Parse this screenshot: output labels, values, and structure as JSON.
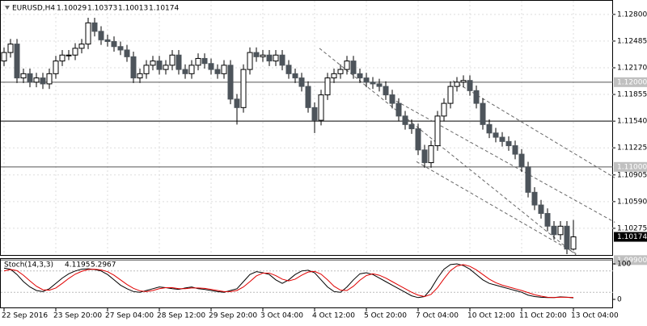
{
  "chart_data": {
    "type": "candlestick",
    "title": "EURUSD,H4",
    "categories": [
      "22 Sep 2016",
      null,
      null,
      null,
      null,
      null,
      null,
      null,
      "23 Sep 20:00",
      null,
      null,
      null,
      null,
      null,
      null,
      null,
      "27 Sep 04:00",
      null,
      null,
      null,
      null,
      null,
      null,
      null,
      "28 Sep 12:00",
      null,
      null,
      null,
      null,
      null,
      null,
      null,
      "29 Sep 20:00",
      null,
      null,
      null,
      null,
      null,
      null,
      null,
      "3 Oct 04:00",
      null,
      null,
      null,
      null,
      null,
      null,
      null,
      "4 Oct 12:00",
      null,
      null,
      null,
      null,
      null,
      null,
      null,
      "5 Oct 20:00",
      null,
      null,
      null,
      null,
      null,
      null,
      null,
      "7 Oct 04:00",
      null,
      null,
      null,
      null,
      null,
      null,
      null,
      "10 Oct 12:00",
      null,
      null,
      null,
      null,
      null,
      null,
      null,
      "11 Oct 20:00",
      null,
      null,
      null,
      null,
      null,
      null,
      null,
      "13 Oct 04:00"
    ],
    "open": [
      1.1225,
      1.1235,
      1.1245,
      1.1205,
      1.121,
      1.12,
      1.1205,
      1.1198,
      1.121,
      1.1225,
      1.1232,
      1.1232,
      1.124,
      1.1245,
      1.127,
      1.126,
      1.125,
      1.1248,
      1.1242,
      1.1238,
      1.123,
      1.1205,
      1.121,
      1.122,
      1.1225,
      1.1215,
      1.122,
      1.1232,
      1.1215,
      1.121,
      1.122,
      1.1228,
      1.1222,
      1.1215,
      1.121,
      1.122,
      1.118,
      1.117,
      1.1215,
      1.1235,
      1.123,
      1.1232,
      1.1225,
      1.1232,
      1.122,
      1.121,
      1.1205,
      1.1195,
      1.117,
      1.1155,
      1.1185,
      1.1205,
      1.121,
      1.1215,
      1.1225,
      1.121,
      1.1205,
      1.12,
      1.1198,
      1.1195,
      1.1185,
      1.1175,
      1.116,
      1.115,
      1.1145,
      1.112,
      1.1105,
      1.1125,
      1.116,
      1.1175,
      1.1195,
      1.12,
      1.1202,
      1.119,
      1.1175,
      1.115,
      1.114,
      1.1135,
      1.113,
      1.1125,
      1.1115,
      1.11,
      1.107,
      1.1055,
      1.1045,
      1.103,
      1.102,
      1.103,
      1.10029
    ],
    "high": [
      1.1241,
      1.1251,
      1.1251,
      1.1216,
      1.1216,
      1.1211,
      1.1211,
      1.1216,
      1.1231,
      1.1238,
      1.1238,
      1.1246,
      1.1251,
      1.1276,
      1.1276,
      1.1266,
      1.1256,
      1.1254,
      1.1248,
      1.1244,
      1.1236,
      1.1216,
      1.1226,
      1.1231,
      1.1231,
      1.1226,
      1.1238,
      1.1238,
      1.1221,
      1.1226,
      1.1234,
      1.1234,
      1.1228,
      1.1221,
      1.1226,
      1.1226,
      1.1186,
      1.1221,
      1.1241,
      1.1241,
      1.1238,
      1.1238,
      1.1238,
      1.1238,
      1.1226,
      1.1216,
      1.1211,
      1.1201,
      1.1176,
      1.1191,
      1.1211,
      1.1216,
      1.1221,
      1.1231,
      1.1231,
      1.1216,
      1.1211,
      1.1206,
      1.1204,
      1.1201,
      1.1191,
      1.1181,
      1.1166,
      1.1156,
      1.1151,
      1.1126,
      1.1131,
      1.1166,
      1.1181,
      1.1201,
      1.1206,
      1.1208,
      1.1208,
      1.1196,
      1.1181,
      1.1156,
      1.1146,
      1.1141,
      1.1136,
      1.1131,
      1.1121,
      1.1106,
      1.1076,
      1.1061,
      1.1051,
      1.1036,
      1.1036,
      1.1036,
      1.10373
    ],
    "low": [
      1.1219,
      1.1229,
      1.1199,
      1.1199,
      1.1194,
      1.1194,
      1.1192,
      1.1192,
      1.1204,
      1.1219,
      1.1226,
      1.1226,
      1.1234,
      1.1239,
      1.1254,
      1.1244,
      1.1242,
      1.1236,
      1.1232,
      1.1224,
      1.1199,
      1.1199,
      1.1204,
      1.1214,
      1.1209,
      1.1209,
      1.1214,
      1.1209,
      1.1204,
      1.1204,
      1.1214,
      1.1216,
      1.1209,
      1.1204,
      1.1204,
      1.1174,
      1.115,
      1.1164,
      1.1209,
      1.1224,
      1.1224,
      1.1219,
      1.1219,
      1.1214,
      1.1204,
      1.1199,
      1.1189,
      1.1164,
      1.114,
      1.1149,
      1.1179,
      1.1199,
      1.1204,
      1.1209,
      1.1204,
      1.1199,
      1.1194,
      1.1192,
      1.1189,
      1.1179,
      1.1169,
      1.1154,
      1.1144,
      1.1139,
      1.1114,
      1.1099,
      1.1099,
      1.1119,
      1.1154,
      1.1169,
      1.1189,
      1.1194,
      1.1184,
      1.1169,
      1.1144,
      1.1134,
      1.1129,
      1.1124,
      1.1119,
      1.1109,
      1.1094,
      1.1064,
      1.1049,
      1.1039,
      1.1024,
      1.1014,
      1.1014,
      1.0997,
      1.10013
    ],
    "close": [
      1.1235,
      1.1245,
      1.1205,
      1.121,
      1.12,
      1.1205,
      1.1198,
      1.121,
      1.1225,
      1.1232,
      1.1232,
      1.124,
      1.1245,
      1.127,
      1.126,
      1.125,
      1.1248,
      1.1242,
      1.1238,
      1.123,
      1.1205,
      1.121,
      1.122,
      1.1225,
      1.1215,
      1.122,
      1.1232,
      1.1215,
      1.121,
      1.122,
      1.1228,
      1.1222,
      1.1215,
      1.121,
      1.122,
      1.118,
      1.117,
      1.1215,
      1.1235,
      1.123,
      1.1232,
      1.1225,
      1.1232,
      1.122,
      1.121,
      1.1205,
      1.1195,
      1.117,
      1.1155,
      1.1185,
      1.1205,
      1.121,
      1.1215,
      1.1225,
      1.121,
      1.1205,
      1.12,
      1.1198,
      1.1195,
      1.1185,
      1.1175,
      1.116,
      1.115,
      1.1145,
      1.112,
      1.1105,
      1.1125,
      1.116,
      1.1175,
      1.1195,
      1.12,
      1.1202,
      1.119,
      1.1175,
      1.115,
      1.114,
      1.1135,
      1.113,
      1.1125,
      1.1115,
      1.11,
      1.107,
      1.1055,
      1.1045,
      1.103,
      1.102,
      1.103,
      1.1003,
      1.10174
    ],
    "up_color": "#ffffff",
    "down_color": "#4d545b",
    "ylim": [
      1.0996,
      1.1297
    ],
    "yticks": [
      {
        "value": 1.128,
        "label": "1.12800"
      },
      {
        "value": 1.12485,
        "label": "1.12485"
      },
      {
        "value": 1.1217,
        "label": "1.12170"
      },
      {
        "value": 1.11855,
        "label": "1.11855"
      },
      {
        "value": 1.1154,
        "label": "1.11540"
      },
      {
        "value": 1.11225,
        "label": "1.11225"
      },
      {
        "value": 1.10905,
        "label": "1.10905"
      },
      {
        "value": 1.1059,
        "label": "1.10590"
      },
      {
        "value": 1.10275,
        "label": "1.10275"
      }
    ],
    "grid": true,
    "levels": [
      {
        "value": 1.12,
        "label": "1.12000"
      },
      {
        "value": 1.1154
      },
      {
        "value": 1.11,
        "label": "1.11000"
      },
      {
        "value": 1.099,
        "label": "1.09900"
      }
    ],
    "current_price": {
      "value": 1.10174,
      "label": "1.10174"
    },
    "trendlines": [
      [
        [
          48.75,
          1.124
        ],
        [
          88.4,
          1.0996
        ]
      ],
      [
        [
          69.4,
          1.12017
        ],
        [
          94.4,
          1.10871
        ]
      ],
      [
        [
          60.6,
          1.11778
        ],
        [
          94.4,
          1.10346
        ]
      ],
      [
        [
          63.75,
          1.11062
        ],
        [
          88.75,
          1.0996
        ]
      ]
    ],
    "indicator": {
      "title": "Stoch(14,3,3)",
      "ylim": [
        0,
        100
      ],
      "yticks": [
        0,
        100
      ],
      "series": [
        {
          "name": "Main",
          "color": "#000000",
          "values": [
            88,
            85,
            70,
            50,
            35,
            25,
            22,
            30,
            45,
            60,
            72,
            80,
            85,
            86,
            84,
            80,
            70,
            55,
            40,
            30,
            22,
            20,
            25,
            30,
            35,
            33,
            30,
            28,
            32,
            35,
            30,
            28,
            25,
            22,
            20,
            25,
            30,
            50,
            70,
            78,
            75,
            70,
            55,
            45,
            55,
            70,
            80,
            82,
            75,
            55,
            35,
            22,
            20,
            35,
            55,
            72,
            75,
            70,
            60,
            50,
            40,
            30,
            20,
            10,
            5,
            8,
            30,
            60,
            85,
            98,
            100,
            95,
            85,
            70,
            55,
            45,
            40,
            35,
            30,
            25,
            20,
            12,
            8,
            6,
            5,
            5,
            7,
            6,
            4.1195
          ]
        },
        {
          "name": "Signal",
          "color": "#e00000",
          "values": [
            80,
            84,
            81,
            68,
            52,
            37,
            27,
            26,
            32,
            45,
            59,
            71,
            79,
            84,
            85,
            83,
            78,
            68,
            55,
            42,
            31,
            24,
            22,
            25,
            30,
            33,
            33,
            30,
            30,
            32,
            32,
            31,
            28,
            25,
            22,
            22,
            25,
            35,
            50,
            66,
            74,
            74,
            67,
            57,
            52,
            57,
            68,
            77,
            79,
            71,
            55,
            37,
            26,
            25,
            37,
            54,
            67,
            72,
            68,
            60,
            50,
            40,
            30,
            20,
            12,
            8,
            14,
            33,
            58,
            81,
            94,
            98,
            93,
            83,
            70,
            57,
            47,
            40,
            35,
            30,
            25,
            19,
            13,
            9,
            6,
            5,
            6,
            6,
            5.2967
          ]
        }
      ]
    }
  }
}
